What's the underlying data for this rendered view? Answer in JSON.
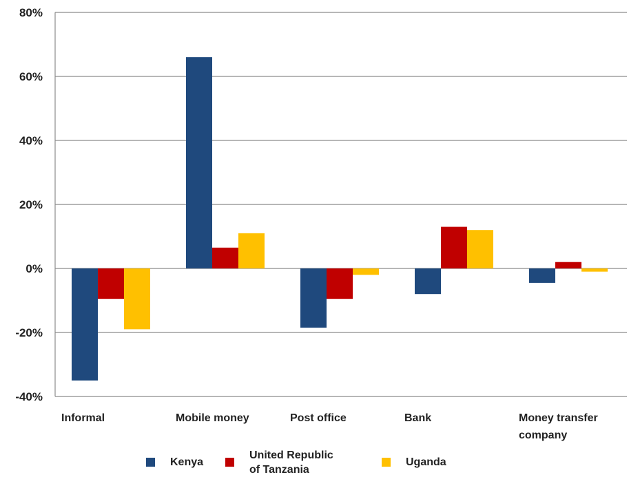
{
  "chart_data": {
    "type": "bar",
    "title": "",
    "xlabel": "",
    "ylabel": "",
    "categories": [
      "Informal",
      "Mobile money",
      "Post office",
      "Bank",
      "Money transfer company"
    ],
    "category_lines": [
      [
        "Informal"
      ],
      [
        "Mobile money"
      ],
      [
        "Post office"
      ],
      [
        "Bank"
      ],
      [
        "Money transfer",
        "company"
      ]
    ],
    "series": [
      {
        "name": "Kenya",
        "color": "#1F497D",
        "values": [
          -35,
          66,
          -18.5,
          -8,
          -4.5
        ]
      },
      {
        "name": "United Republic of Tanzania",
        "name_lines": [
          "United Republic",
          "of Tanzania"
        ],
        "color": "#C00000",
        "values": [
          -9.5,
          6.5,
          -9.5,
          13,
          2
        ]
      },
      {
        "name": "Uganda",
        "color": "#FFC000",
        "values": [
          -19,
          11,
          -2,
          12,
          -1
        ]
      }
    ],
    "ylim": [
      -40,
      80
    ],
    "yticks": [
      -40,
      -20,
      0,
      20,
      40,
      60,
      80
    ],
    "ytick_labels": [
      "-40%",
      "-20%",
      "0%",
      "20%",
      "40%",
      "60%",
      "80%"
    ],
    "grid": true,
    "legend_position": "bottom"
  }
}
